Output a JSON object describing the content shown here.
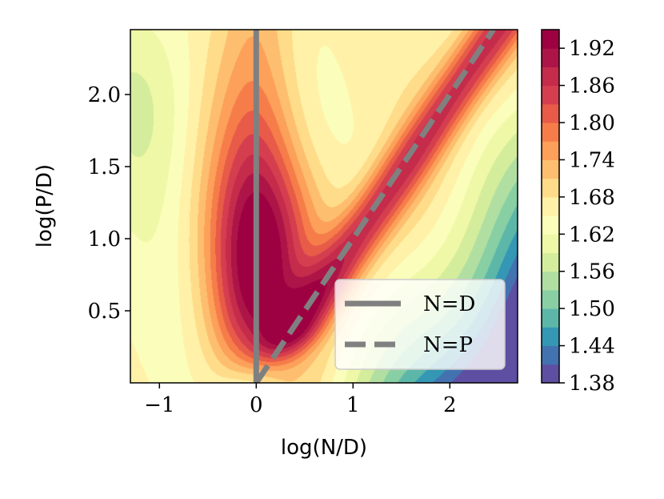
{
  "chart_data": {
    "type": "heatmap",
    "subtype": "filled-contour",
    "xlabel": "log(N/D)",
    "ylabel": "log(P/D)",
    "xlim": [
      -1.3,
      2.7
    ],
    "ylim": [
      0.0,
      2.45
    ],
    "x_ticks": [
      "−1",
      "0",
      "1",
      "2"
    ],
    "y_ticks": [
      "0.5",
      "1.0",
      "1.5",
      "2.0"
    ],
    "colorbar": {
      "colormap": "Spectral_r",
      "range": [
        1.38,
        1.95
      ],
      "ticks": [
        "1.38",
        "1.44",
        "1.50",
        "1.56",
        "1.62",
        "1.68",
        "1.74",
        "1.80",
        "1.86",
        "1.92"
      ],
      "level_step": 0.03
    },
    "levels": [
      1.38,
      1.41,
      1.44,
      1.47,
      1.5,
      1.53,
      1.56,
      1.59,
      1.62,
      1.65,
      1.68,
      1.71,
      1.74,
      1.77,
      1.8,
      1.83,
      1.86,
      1.89,
      1.92,
      1.95
    ],
    "level_colors": [
      "#5e4fa2",
      "#4372b1",
      "#3497b3",
      "#5cb7a9",
      "#88cfa4",
      "#b1dfa2",
      "#d4ed9c",
      "#eef8a6",
      "#fbfdba",
      "#fff1a8",
      "#fedc8a",
      "#fdbf6f",
      "#fca05a",
      "#f67d4a",
      "#e75b48",
      "#d53e4f",
      "#c52b4b",
      "#ad1447",
      "#9e0142"
    ],
    "lines": [
      {
        "name": "N=D",
        "style": "solid",
        "color": "#808080",
        "points": [
          [
            0,
            0
          ],
          [
            0,
            2.45
          ]
        ]
      },
      {
        "name": "N=P",
        "style": "dashed",
        "color": "#808080",
        "points": [
          [
            0,
            0
          ],
          [
            2.45,
            2.45
          ]
        ]
      }
    ],
    "legend": {
      "position": "lower-right",
      "entries": [
        "N=D",
        "N=P"
      ]
    }
  }
}
